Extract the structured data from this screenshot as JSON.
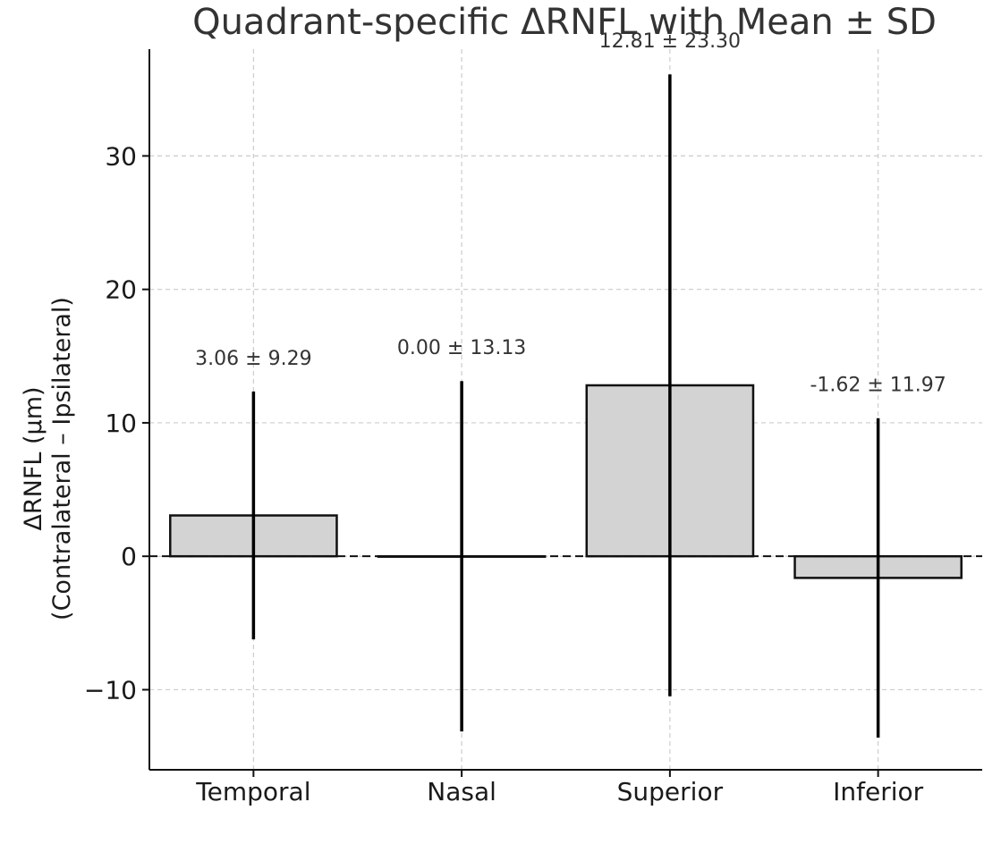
{
  "chart_data": {
    "type": "bar",
    "title": "Quadrant-specific ΔRNFL with Mean ± SD",
    "xlabel": "",
    "ylabel_lines": [
      "ΔRNFL (µm)",
      "(Contralateral – Ipsilateral)"
    ],
    "categories": [
      "Temporal",
      "Nasal",
      "Superior",
      "Inferior"
    ],
    "values": [
      3.06,
      0.0,
      12.81,
      -1.62
    ],
    "sd": [
      9.29,
      13.13,
      23.3,
      11.97
    ],
    "annotations": [
      "3.06 ± 9.29",
      "0.00 ± 13.13",
      "12.81 ± 23.30",
      "-1.62 ± 11.97"
    ],
    "ylim": [
      -16,
      38
    ],
    "yticks": [
      -10,
      0,
      10,
      20,
      30
    ],
    "ytick_labels": [
      "−10",
      "0",
      "10",
      "20",
      "30"
    ],
    "grid": true,
    "reference_line": 0,
    "colors": {
      "bar_fill": "#d3d3d3",
      "bar_edge": "#111111",
      "error_bar": "#000000"
    }
  }
}
